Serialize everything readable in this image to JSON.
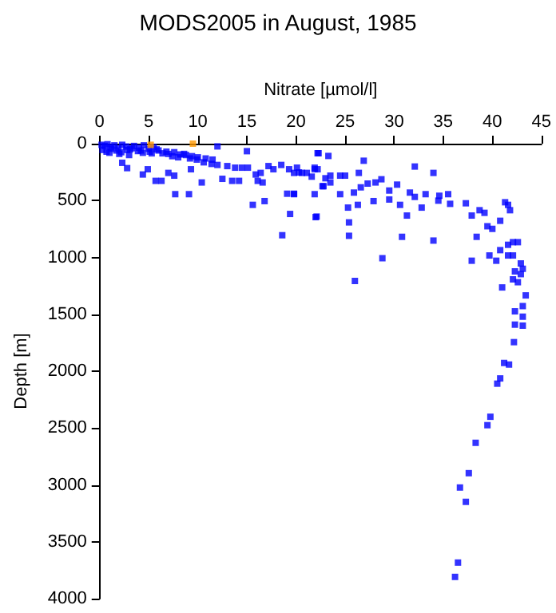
{
  "chart_data": {
    "type": "scatter",
    "title": "MODS2005 in August, 1985",
    "xlabel": "Nitrate [µmol/l]",
    "ylabel": "Depth [m]",
    "xlim": [
      0,
      45
    ],
    "xticks": [
      0,
      5,
      10,
      15,
      20,
      25,
      30,
      35,
      40,
      45
    ],
    "ylim": [
      4000,
      0
    ],
    "yticks": [
      0,
      500,
      1000,
      1500,
      2000,
      2500,
      3000,
      3500,
      4000
    ],
    "grid": false,
    "marker": "square",
    "series": [
      {
        "color": "#0000ff",
        "x": [
          0.2,
          0.5,
          0.8,
          1.1,
          1.5,
          1.9,
          2.3,
          2.7,
          3.1,
          3.5,
          4.0,
          4.5,
          5.0,
          5.5,
          6.0,
          0.3,
          0.7,
          1.2,
          1.7,
          2.2,
          2.8,
          3.3,
          3.9,
          4.4,
          5.1,
          5.8,
          6.4,
          7.0,
          7.6,
          8.2,
          8.8,
          9.4,
          10.0,
          10.8,
          11.5,
          6.8,
          7.4,
          8.0,
          8.6,
          9.2,
          1.0,
          2.0,
          3.0,
          4.2,
          5.3,
          7.7,
          9.1,
          5.7,
          6.3,
          4.4,
          2.8,
          2.3,
          4.9,
          7.0,
          7.6,
          10.4,
          9.3,
          12,
          15,
          15.6,
          16.8,
          18.6,
          19.1,
          19.8,
          19.4,
          22.1,
          21.9,
          22.3,
          22.7,
          12.5,
          13.5,
          14.2,
          13,
          12,
          11.4,
          15.9,
          16.4,
          17.2,
          17.7,
          18.5,
          19.3,
          20.3,
          21.1,
          21.9,
          16.1,
          16.6,
          15.1,
          14.5,
          13.8,
          9.9,
          10.6,
          22.2,
          23.3,
          26.9,
          32.1,
          34,
          20.1,
          19.8,
          20.6,
          21.9,
          22.2,
          21.6,
          23,
          23.5,
          24.5,
          25,
          26.4,
          23.5,
          22.8,
          26.6,
          27.3,
          28.1,
          28.7,
          29.5,
          30.3,
          19.8,
          24.5,
          25.9,
          25.3,
          26.3,
          27.9,
          29.5,
          31.6,
          32.1,
          33.2,
          34.6,
          35.5,
          37.3,
          35.7,
          34.5,
          30.6,
          31.3,
          32.8,
          25.4,
          25.4,
          22,
          30.8,
          34,
          28.8,
          26,
          37.9,
          38.7,
          39.2,
          39.5,
          40,
          40.8,
          41.3,
          41.6,
          41.8,
          37.9,
          38.4,
          39.7,
          40.4,
          40.8,
          41.6,
          42.1,
          42.6,
          41.6,
          42.1,
          42.9,
          43.1,
          42.9,
          42.3,
          42.1,
          42.6,
          43.4,
          43.1,
          42.3,
          43.1,
          42.3,
          43.1,
          42.2,
          41,
          41.2,
          41.7,
          40.8,
          40.5,
          39.8,
          39.5,
          38.3,
          37.6,
          36.7,
          37.3,
          36.5,
          36.2
        ],
        "values": [
          10,
          20,
          5,
          30,
          15,
          40,
          10,
          25,
          50,
          20,
          35,
          15,
          45,
          30,
          60,
          55,
          70,
          45,
          60,
          75,
          55,
          40,
          65,
          80,
          70,
          50,
          85,
          90,
          75,
          95,
          100,
          110,
          120,
          130,
          140,
          70,
          110,
          120,
          90,
          130,
          80,
          90,
          100,
          60,
          85,
          444,
          444,
          327,
          327,
          271,
          215,
          168,
          225,
          257,
          281,
          341,
          225,
          24,
          66,
          538,
          505,
          805,
          440,
          440,
          618,
          641,
          444,
          84,
          374,
          309,
          327,
          327,
          197,
          187,
          178,
          271,
          257,
          197,
          225,
          187,
          225,
          253,
          257,
          225,
          327,
          341,
          211,
          211,
          211,
          140,
          164,
          84,
          108,
          150,
          201,
          257,
          211,
          257,
          257,
          211,
          225,
          290,
          304,
          281,
          281,
          281,
          257,
          341,
          374,
          384,
          351,
          341,
          313,
          412,
          360,
          444,
          444,
          430,
          562,
          538,
          505,
          491,
          430,
          468,
          444,
          458,
          444,
          524,
          529,
          501,
          538,
          632,
          562,
          692,
          810,
          646,
          819,
          852,
          1007,
          1207,
          632,
          585,
          608,
          726,
          749,
          678,
          515,
          538,
          585,
          1029,
          819,
          983,
          1029,
          936,
          889,
          866,
          866,
          983,
          983,
          1053,
          1100,
          1147,
          1123,
          1193,
          1218,
          1334,
          1428,
          1474,
          1521,
          1591,
          1600,
          1745,
          1264,
          1928,
          1942,
          2064,
          2110,
          2401,
          2475,
          2630,
          2897,
          3023,
          3149,
          3683,
          3809
        ]
      },
      {
        "color": "#ff9900",
        "x": [
          5.2,
          9.5
        ],
        "values": [
          10,
          0
        ]
      }
    ]
  }
}
